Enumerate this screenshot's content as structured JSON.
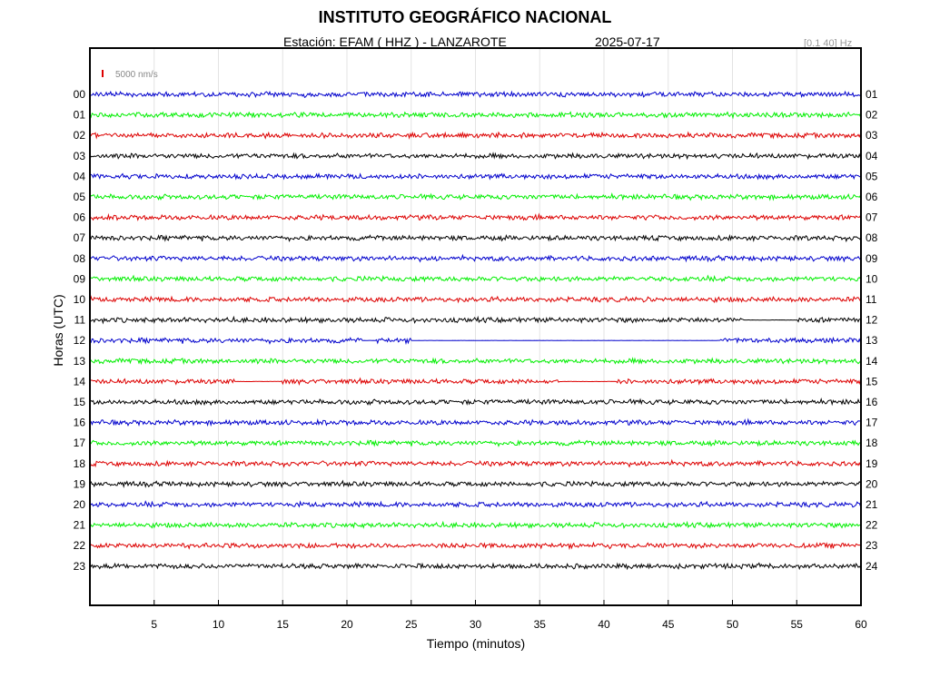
{
  "header": {
    "title": "INSTITUTO GEOGRÁFICO NACIONAL",
    "station": "Estación:  EFAM ( HHZ ) - LANZAROTE",
    "date": "2025-07-17",
    "filter": "[0.1 40] Hz"
  },
  "chart_data": {
    "type": "line",
    "xlabel": "Tiempo (minutos)",
    "ylabel": "Horas (UTC)",
    "xlim": [
      0,
      60
    ],
    "x_ticks": [
      5,
      10,
      15,
      20,
      25,
      30,
      35,
      40,
      45,
      50,
      55,
      60
    ],
    "scale_label": "5000 nm/s",
    "grid": "vertical",
    "colors": [
      "#0000cc",
      "#00ee00",
      "#dd0000",
      "#000000"
    ],
    "left_labels": [
      "00",
      "01",
      "02",
      "03",
      "04",
      "05",
      "06",
      "07",
      "08",
      "09",
      "10",
      "11",
      "12",
      "13",
      "14",
      "15",
      "16",
      "17",
      "18",
      "19",
      "20",
      "21",
      "22",
      "23"
    ],
    "right_labels": [
      "01",
      "02",
      "03",
      "04",
      "05",
      "06",
      "07",
      "08",
      "09",
      "10",
      "11",
      "12",
      "13",
      "14",
      "15",
      "16",
      "17",
      "18",
      "19",
      "20",
      "21",
      "22",
      "23",
      "24"
    ],
    "quiet_segments": [
      {
        "hour": 11,
        "from": 50.8,
        "to": 55.1
      },
      {
        "hour": 12,
        "from": 21.2,
        "to": 22.3
      },
      {
        "hour": 12,
        "from": 25.0,
        "to": 49.0
      },
      {
        "hour": 14,
        "from": 11.2,
        "to": 14.9
      },
      {
        "hour": 14,
        "from": 36.5,
        "to": 41.0
      }
    ]
  }
}
